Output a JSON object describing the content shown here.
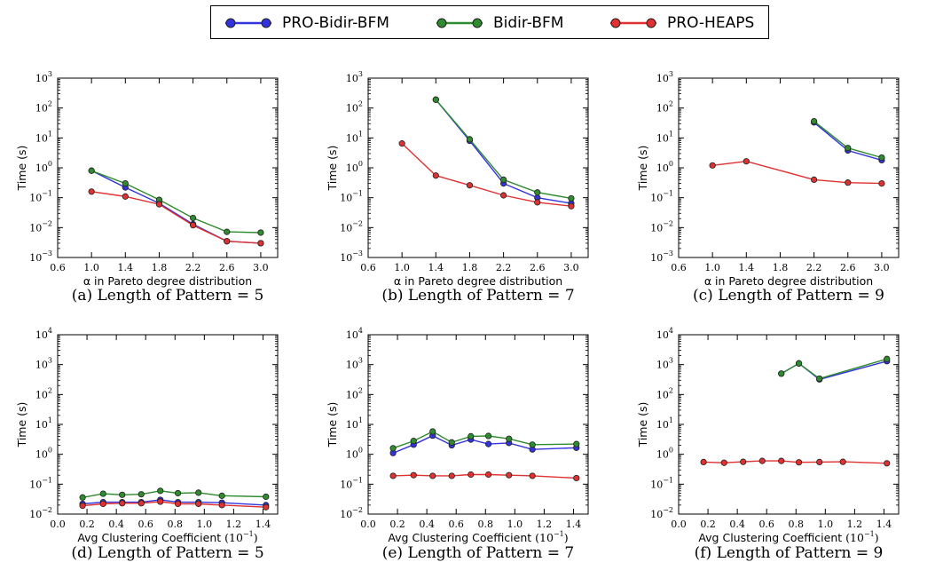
{
  "legend": {
    "items": [
      {
        "label": "PRO-Bidir-BFM",
        "color": "#3333dd"
      },
      {
        "label": "Bidir-BFM",
        "color": "#2e8b2e"
      },
      {
        "label": "PRO-HEAPS",
        "color": "#e03030"
      }
    ]
  },
  "chart_data": [
    {
      "type": "line",
      "caption": "(a) Length of Pattern = 5",
      "xlabel": "α in Pareto degree distribution",
      "ylabel": "Time (s)",
      "yscale": "log",
      "xlim": [
        0.6,
        3.2
      ],
      "ylim_exp": [
        -3,
        3
      ],
      "xticks": [
        "0.6",
        "1.0",
        "1.4",
        "1.8",
        "2.2",
        "2.6",
        "3.0"
      ],
      "series": [
        {
          "name": "PRO-Bidir-BFM",
          "color": "#3333dd",
          "x": [
            1.0,
            1.4,
            1.8,
            2.2,
            2.6,
            3.0
          ],
          "y": [
            0.8,
            0.22,
            0.065,
            0.013,
            0.0035,
            0.003
          ]
        },
        {
          "name": "Bidir-BFM",
          "color": "#2e8b2e",
          "x": [
            1.0,
            1.4,
            1.8,
            2.2,
            2.6,
            3.0
          ],
          "y": [
            0.8,
            0.3,
            0.085,
            0.021,
            0.0072,
            0.0068
          ]
        },
        {
          "name": "PRO-HEAPS",
          "color": "#e03030",
          "x": [
            1.0,
            1.4,
            1.8,
            2.2,
            2.6,
            3.0
          ],
          "y": [
            0.16,
            0.11,
            0.06,
            0.012,
            0.0035,
            0.003
          ]
        }
      ]
    },
    {
      "type": "line",
      "caption": "(b) Length of Pattern = 7",
      "xlabel": "α in Pareto degree distribution",
      "ylabel": "Time (s)",
      "yscale": "log",
      "xlim": [
        0.6,
        3.2
      ],
      "ylim_exp": [
        -3,
        3
      ],
      "xticks": [
        "0.6",
        "1.0",
        "1.4",
        "1.8",
        "2.2",
        "2.6",
        "3.0"
      ],
      "series": [
        {
          "name": "PRO-Bidir-BFM",
          "color": "#3333dd",
          "x": [
            1.4,
            1.8,
            2.2,
            2.6,
            3.0
          ],
          "y": [
            190,
            8,
            0.3,
            0.1,
            0.065
          ]
        },
        {
          "name": "Bidir-BFM",
          "color": "#2e8b2e",
          "x": [
            1.4,
            1.8,
            2.2,
            2.6,
            3.0
          ],
          "y": [
            190,
            9,
            0.4,
            0.15,
            0.095
          ]
        },
        {
          "name": "PRO-HEAPS",
          "color": "#e03030",
          "x": [
            1.0,
            1.4,
            1.8,
            2.2,
            2.6,
            3.0
          ],
          "y": [
            6.5,
            0.55,
            0.26,
            0.12,
            0.07,
            0.052
          ]
        }
      ]
    },
    {
      "type": "line",
      "caption": "(c) Length of Pattern = 9",
      "xlabel": "α in Pareto degree distribution",
      "ylabel": "Time (s)",
      "yscale": "log",
      "xlim": [
        0.6,
        3.2
      ],
      "ylim_exp": [
        -3,
        3
      ],
      "xticks": [
        "0.6",
        "1.0",
        "1.4",
        "1.8",
        "2.2",
        "2.6",
        "3.0"
      ],
      "series": [
        {
          "name": "PRO-Bidir-BFM",
          "color": "#3333dd",
          "x": [
            2.2,
            2.6,
            3.0
          ],
          "y": [
            33,
            3.8,
            1.8
          ]
        },
        {
          "name": "Bidir-BFM",
          "color": "#2e8b2e",
          "x": [
            2.2,
            2.6,
            3.0
          ],
          "y": [
            36,
            4.6,
            2.2
          ]
        },
        {
          "name": "PRO-HEAPS",
          "color": "#e03030",
          "x": [
            1.0,
            1.4,
            2.2,
            2.6,
            3.0
          ],
          "y": [
            1.2,
            1.65,
            0.4,
            0.32,
            0.3
          ]
        }
      ]
    },
    {
      "type": "line",
      "caption": "(d) Length of Pattern = 5",
      "xlabel": "Avg Clustering Coefficient",
      "xlabel_unit": "(10",
      "xlabel_exp": "−1",
      "ylabel": "Time (s)",
      "yscale": "log",
      "xlim": [
        0.0,
        1.5
      ],
      "ylim_exp": [
        -2,
        4
      ],
      "xticks": [
        "0.0",
        "0.2",
        "0.4",
        "0.6",
        "0.8",
        "1.0",
        "1.2",
        "1.4"
      ],
      "series": [
        {
          "name": "PRO-Bidir-BFM",
          "color": "#3333dd",
          "x": [
            0.17,
            0.31,
            0.44,
            0.57,
            0.7,
            0.82,
            0.96,
            1.12,
            1.42
          ],
          "y": [
            0.022,
            0.025,
            0.025,
            0.025,
            0.03,
            0.025,
            0.025,
            0.024,
            0.02
          ]
        },
        {
          "name": "Bidir-BFM",
          "color": "#2e8b2e",
          "x": [
            0.17,
            0.31,
            0.44,
            0.57,
            0.7,
            0.82,
            0.96,
            1.12,
            1.42
          ],
          "y": [
            0.036,
            0.048,
            0.044,
            0.046,
            0.06,
            0.05,
            0.052,
            0.041,
            0.038
          ]
        },
        {
          "name": "PRO-HEAPS",
          "color": "#e03030",
          "x": [
            0.17,
            0.31,
            0.44,
            0.57,
            0.7,
            0.82,
            0.96,
            1.12,
            1.42
          ],
          "y": [
            0.019,
            0.022,
            0.023,
            0.023,
            0.026,
            0.022,
            0.022,
            0.02,
            0.017
          ]
        }
      ]
    },
    {
      "type": "line",
      "caption": "(e) Length of Pattern = 7",
      "xlabel": "Avg Clustering Coefficient",
      "xlabel_unit": "(10",
      "xlabel_exp": "−1",
      "ylabel": "Time (s)",
      "yscale": "log",
      "xlim": [
        0.0,
        1.5
      ],
      "ylim_exp": [
        -2,
        4
      ],
      "xticks": [
        "0.0",
        "0.2",
        "0.4",
        "0.6",
        "0.8",
        "1.0",
        "1.2",
        "1.4"
      ],
      "series": [
        {
          "name": "PRO-Bidir-BFM",
          "color": "#3333dd",
          "x": [
            0.17,
            0.31,
            0.44,
            0.57,
            0.7,
            0.82,
            0.96,
            1.12,
            1.42
          ],
          "y": [
            1.1,
            2.1,
            4.2,
            2.0,
            3.1,
            2.2,
            2.4,
            1.45,
            1.65
          ]
        },
        {
          "name": "Bidir-BFM",
          "color": "#2e8b2e",
          "x": [
            0.17,
            0.31,
            0.44,
            0.57,
            0.7,
            0.82,
            0.96,
            1.12,
            1.42
          ],
          "y": [
            1.6,
            2.8,
            5.8,
            2.5,
            4.0,
            4.1,
            3.3,
            2.1,
            2.2
          ]
        },
        {
          "name": "PRO-HEAPS",
          "color": "#e03030",
          "x": [
            0.17,
            0.31,
            0.44,
            0.57,
            0.7,
            0.82,
            0.96,
            1.12,
            1.42
          ],
          "y": [
            0.19,
            0.2,
            0.19,
            0.19,
            0.21,
            0.21,
            0.2,
            0.19,
            0.16
          ]
        }
      ]
    },
    {
      "type": "line",
      "caption": "(f) Length of Pattern = 9",
      "xlabel": "Avg Clustering Coefficient",
      "xlabel_unit": "(10",
      "xlabel_exp": "−1",
      "ylabel": "Time (s)",
      "yscale": "log",
      "xlim": [
        0.0,
        1.5
      ],
      "ylim_exp": [
        -2,
        4
      ],
      "xticks": [
        "0.0",
        "0.2",
        "0.4",
        "0.6",
        "0.8",
        "1.0",
        "1.2",
        "1.4"
      ],
      "series": [
        {
          "name": "PRO-Bidir-BFM",
          "color": "#3333dd",
          "x": [
            0.7,
            0.82,
            0.96,
            1.42
          ],
          "y": [
            500,
            1100,
            320,
            1300
          ]
        },
        {
          "name": "Bidir-BFM",
          "color": "#2e8b2e",
          "x": [
            0.7,
            0.82,
            0.96,
            1.42
          ],
          "y": [
            500,
            1100,
            340,
            1550
          ]
        },
        {
          "name": "PRO-HEAPS",
          "color": "#e03030",
          "x": [
            0.17,
            0.31,
            0.44,
            0.57,
            0.7,
            0.82,
            0.96,
            1.12,
            1.42
          ],
          "y": [
            0.55,
            0.52,
            0.56,
            0.6,
            0.6,
            0.54,
            0.55,
            0.56,
            0.5
          ]
        }
      ]
    }
  ]
}
